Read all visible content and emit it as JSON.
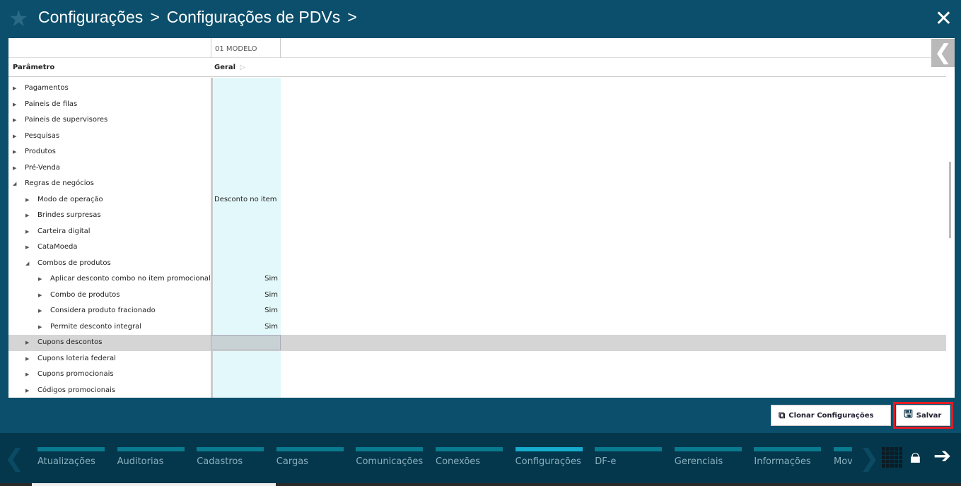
{
  "header": {
    "breadcrumb": [
      "Configurações",
      "Configurações de PDVs"
    ],
    "separator": ">"
  },
  "grid": {
    "column_group": "01 MODELO",
    "param_header": "Parâmetro",
    "value_header": "Geral",
    "rows": [
      {
        "level": 0,
        "label": "Pagamentos",
        "value": "",
        "expanded": false
      },
      {
        "level": 0,
        "label": "Paineis de filas",
        "value": "",
        "expanded": false
      },
      {
        "level": 0,
        "label": "Paineis de supervisores",
        "value": "",
        "expanded": false
      },
      {
        "level": 0,
        "label": "Pesquisas",
        "value": "",
        "expanded": false
      },
      {
        "level": 0,
        "label": "Produtos",
        "value": "",
        "expanded": false
      },
      {
        "level": 0,
        "label": "Pré-Venda",
        "value": "",
        "expanded": false
      },
      {
        "level": 0,
        "label": "Regras de negócios",
        "value": "",
        "expanded": true
      },
      {
        "level": 1,
        "label": "Modo de operação",
        "value": "Desconto no item",
        "expanded": false
      },
      {
        "level": 1,
        "label": "Brindes surpresas",
        "value": "",
        "expanded": false
      },
      {
        "level": 1,
        "label": "Carteira digital",
        "value": "",
        "expanded": false
      },
      {
        "level": 1,
        "label": "CataMoeda",
        "value": "",
        "expanded": false
      },
      {
        "level": 1,
        "label": "Combos de produtos",
        "value": "",
        "expanded": true
      },
      {
        "level": 2,
        "label": "Aplicar desconto combo no item promocional",
        "value": "Sim",
        "expanded": false
      },
      {
        "level": 2,
        "label": "Combo de produtos",
        "value": "Sim",
        "expanded": false
      },
      {
        "level": 2,
        "label": "Considera produto fracionado",
        "value": "Sim",
        "expanded": false
      },
      {
        "level": 2,
        "label": "Permite desconto integral",
        "value": "Sim",
        "expanded": false
      },
      {
        "level": 1,
        "label": "Cupons descontos",
        "value": "",
        "expanded": false,
        "selected": true
      },
      {
        "level": 1,
        "label": "Cupons loteria federal",
        "value": "",
        "expanded": false
      },
      {
        "level": 1,
        "label": "Cupons promocionais",
        "value": "",
        "expanded": false
      },
      {
        "level": 1,
        "label": "Códigos promocionais",
        "value": "",
        "expanded": false
      }
    ]
  },
  "actions": {
    "clone": "Clonar Configurações",
    "save": "Salvar"
  },
  "footer": {
    "tabs": [
      "Atualizações",
      "Auditorias",
      "Cadastros",
      "Cargas",
      "Comunicações",
      "Conexões",
      "Configurações",
      "DF-e",
      "Gerenciais",
      "Informações",
      "Mov"
    ],
    "active": "Configurações"
  },
  "colors": {
    "header": "#0b4f6c",
    "footer": "#04374c",
    "active_tab": "#16aacd",
    "highlight": "#e41b23"
  }
}
